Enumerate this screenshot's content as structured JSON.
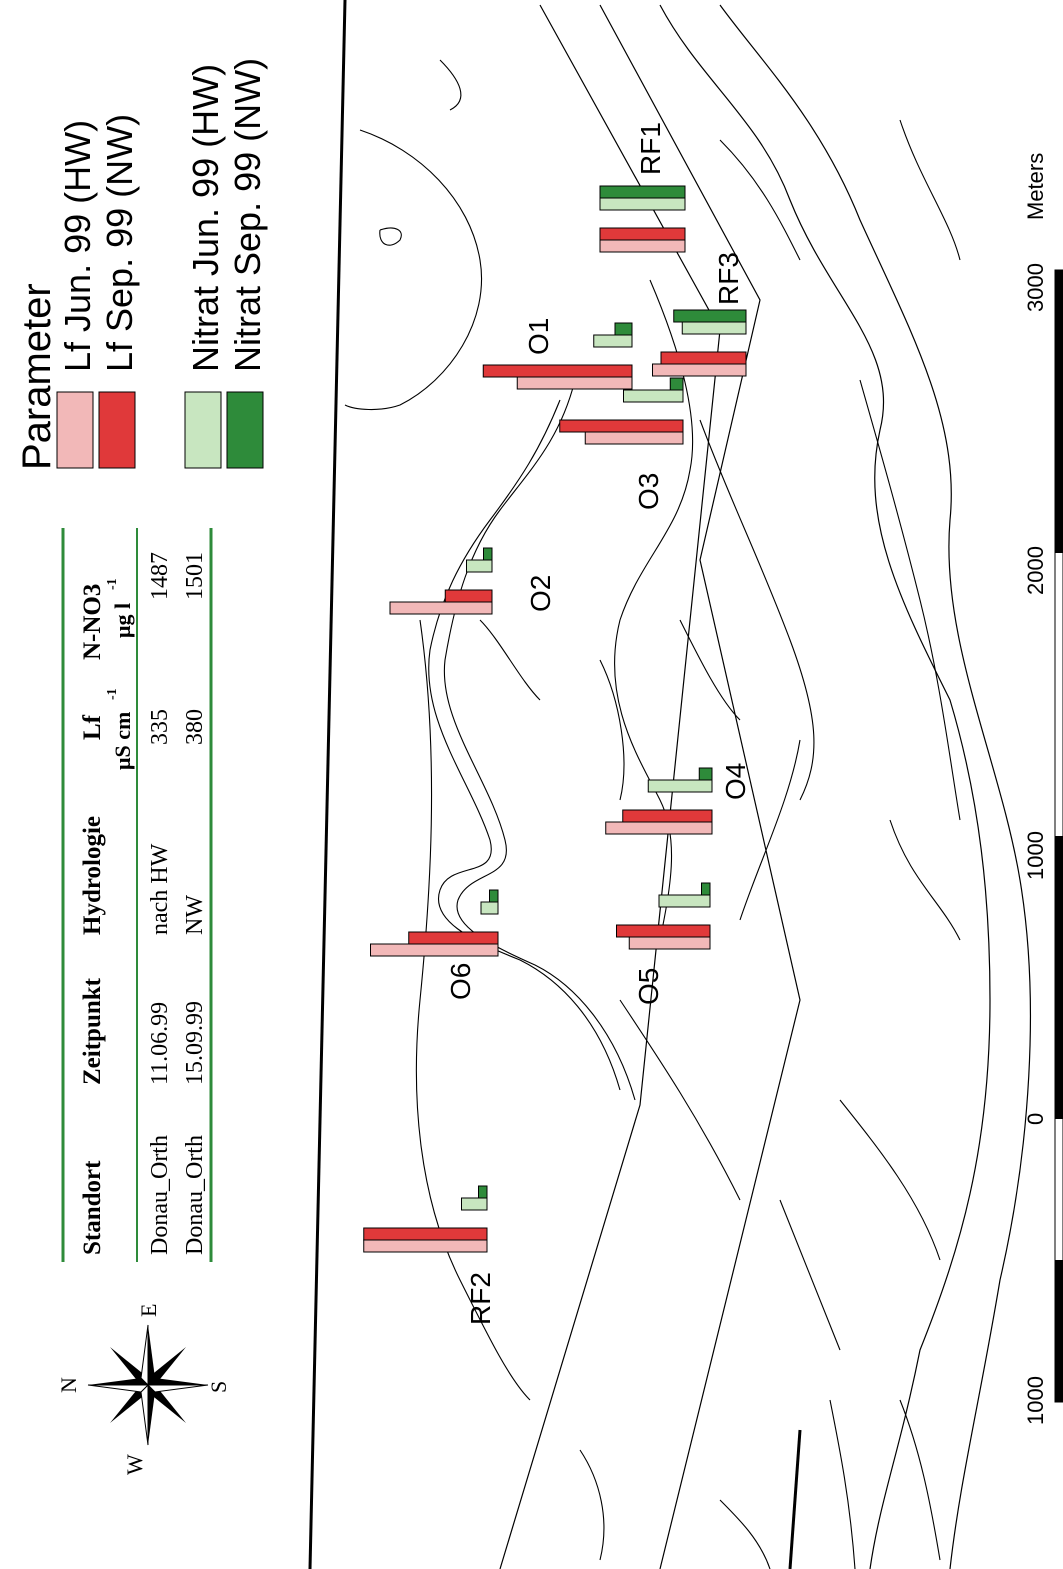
{
  "legend": {
    "title": "Parameter",
    "items": [
      {
        "label": "Lf Jun. 99 (HW)",
        "color": "#f2b8b8"
      },
      {
        "label": "Lf Sep. 99 (NW)",
        "color": "#e0393a"
      },
      {
        "label": "Nitrat Jun. 99 (HW)",
        "color": "#c8e6c0"
      },
      {
        "label": "Nitrat Sep. 99 (NW)",
        "color": "#2e8b3a"
      }
    ]
  },
  "table": {
    "headers": [
      "Standort",
      "Zeitpunkt",
      "Hydrologie",
      "Lf",
      "μS cm",
      "-1",
      "N-NO3",
      "μg l",
      "-1"
    ],
    "rows": [
      [
        "Donau_Orth",
        "11.06.99",
        "nach HW",
        "335",
        "1487"
      ],
      [
        "Donau_Orth",
        "15.09.99",
        "NW",
        "380",
        "1501"
      ]
    ],
    "rule_color": "#2e8b3a"
  },
  "compass": {
    "n": "N",
    "e": "E",
    "s": "S",
    "w": "W"
  },
  "scalebar": {
    "unit": "Meters",
    "ticks": [
      "1000",
      "0",
      "1000",
      "2000",
      "3000"
    ]
  },
  "sites": [
    "RF1",
    "RF3",
    "O1",
    "O3",
    "O2",
    "O4",
    "O6",
    "O5",
    "RF2"
  ],
  "chart_data": {
    "type": "bar",
    "note_units": {
      "Lf": "µS cm-1",
      "Nitrat": "µg l-1"
    },
    "series": [
      {
        "name": "Lf Jun. 99 (HW)",
        "color": "#f2b8b8"
      },
      {
        "name": "Lf Sep. 99 (NW)",
        "color": "#e0393a"
      },
      {
        "name": "Nitrat Jun. 99 (HW)",
        "color": "#c8e6c0"
      },
      {
        "name": "Nitrat Sep. 99 (NW)",
        "color": "#2e8b3a"
      }
    ],
    "categories": [
      "RF1",
      "RF3",
      "O1",
      "O3",
      "O2",
      "O4",
      "O6",
      "O5",
      "RF2"
    ],
    "relative_values": {
      "RF1": [
        1.0,
        1.0,
        1.0,
        1.0
      ],
      "RF3": [
        1.1,
        1.0,
        0.75,
        0.85
      ],
      "O1": [
        1.35,
        1.75,
        0.45,
        0.2
      ],
      "O3": [
        1.15,
        1.45,
        0.7,
        0.15
      ],
      "O2": [
        1.2,
        0.55,
        0.3,
        0.1
      ],
      "O4": [
        1.25,
        1.05,
        0.75,
        0.15
      ],
      "O6": [
        1.5,
        1.05,
        0.2,
        0.1
      ],
      "O5": [
        0.95,
        1.1,
        0.6,
        0.1
      ],
      "RF2": [
        1.45,
        1.45,
        0.3,
        0.1
      ]
    }
  }
}
